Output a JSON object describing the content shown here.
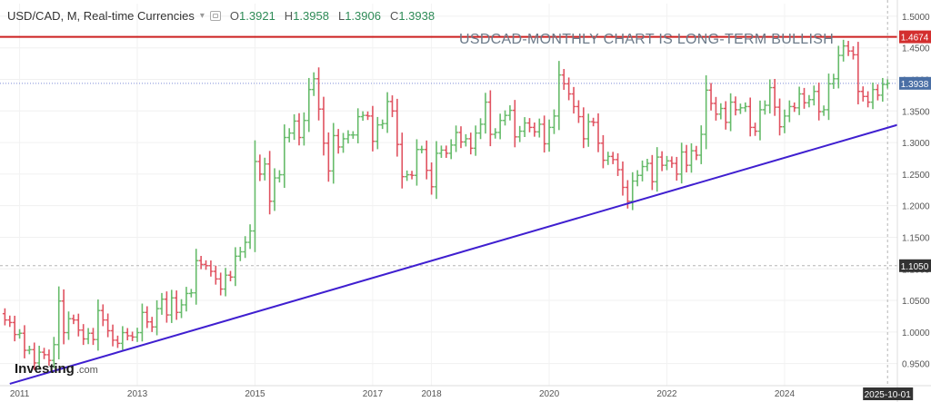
{
  "header": {
    "title": "USD/CAD, M, Real-time Currencies",
    "open_label": "O",
    "open": "1.3921",
    "high_label": "H",
    "high": "1.3958",
    "low_label": "L",
    "low": "1.3906",
    "close_label": "C",
    "close": "1.3938"
  },
  "annotation": "USDCAD-MONTHLY CHART IS LONG-TERM BULLISH",
  "brand": {
    "name": "Investing",
    "suffix": ".com"
  },
  "cursor_date": "2025-10-01",
  "price_tags": [
    {
      "label": "1.4674",
      "value": 1.4674,
      "color": "#d32f2f"
    },
    {
      "label": "1.3938",
      "value": 1.3938,
      "color": "#4a6fa5"
    },
    {
      "label": "1.1050",
      "value": 1.105,
      "color": "#333333"
    }
  ],
  "colors": {
    "up": "#66bb6a",
    "down": "#e05260",
    "trend": "#3f1fd0",
    "resistance": "#cc2020"
  },
  "chart_data": {
    "type": "ohlc",
    "title": "USD/CAD, M, Real-time Currencies",
    "x_ticks": [
      "2011",
      "2013",
      "2015",
      "2017",
      "2018",
      "2020",
      "2022",
      "2024"
    ],
    "y_ticks": [
      "1.5000",
      "1.4500",
      "1.4000",
      "1.3500",
      "1.3000",
      "1.2500",
      "1.2000",
      "1.1500",
      "1.1000",
      "1.0500",
      "1.0000",
      "0.9500"
    ],
    "ylim": [
      0.915,
      1.52
    ],
    "xlim": [
      "2010-09",
      "2025-12"
    ],
    "resistance": 1.4674,
    "trendline": [
      {
        "date": "2010-11",
        "value": 0.918
      },
      {
        "date": "2025-12",
        "value": 1.328
      }
    ],
    "closes": [
      [
        "2010-09",
        1.029
      ],
      [
        "2010-10",
        1.019
      ],
      [
        "2010-11",
        1.015
      ],
      [
        "2010-12",
        0.996
      ],
      [
        "2011-01",
        0.998
      ],
      [
        "2011-02",
        0.971
      ],
      [
        "2011-03",
        0.972
      ],
      [
        "2011-04",
        0.951
      ],
      [
        "2011-05",
        0.968
      ],
      [
        "2011-06",
        0.964
      ],
      [
        "2011-07",
        0.955
      ],
      [
        "2011-08",
        0.98
      ],
      [
        "2011-09",
        1.049
      ],
      [
        "2011-10",
        0.999
      ],
      [
        "2011-11",
        1.021
      ],
      [
        "2011-12",
        1.019
      ],
      [
        "2012-01",
        1.003
      ],
      [
        "2012-02",
        0.989
      ],
      [
        "2012-03",
        0.998
      ],
      [
        "2012-04",
        0.988
      ],
      [
        "2012-05",
        1.034
      ],
      [
        "2012-06",
        1.019
      ],
      [
        "2012-07",
        1.002
      ],
      [
        "2012-08",
        0.987
      ],
      [
        "2012-09",
        0.982
      ],
      [
        "2012-10",
        0.999
      ],
      [
        "2012-11",
        0.994
      ],
      [
        "2012-12",
        0.992
      ],
      [
        "2013-01",
        0.999
      ],
      [
        "2013-02",
        1.031
      ],
      [
        "2013-03",
        1.016
      ],
      [
        "2013-04",
        1.008
      ],
      [
        "2013-05",
        1.037
      ],
      [
        "2013-06",
        1.052
      ],
      [
        "2013-07",
        1.027
      ],
      [
        "2013-08",
        1.054
      ],
      [
        "2013-09",
        1.031
      ],
      [
        "2013-10",
        1.043
      ],
      [
        "2013-11",
        1.061
      ],
      [
        "2013-12",
        1.062
      ],
      [
        "2014-01",
        1.113
      ],
      [
        "2014-02",
        1.107
      ],
      [
        "2014-03",
        1.105
      ],
      [
        "2014-04",
        1.096
      ],
      [
        "2014-05",
        1.084
      ],
      [
        "2014-06",
        1.068
      ],
      [
        "2014-07",
        1.09
      ],
      [
        "2014-08",
        1.087
      ],
      [
        "2014-09",
        1.12
      ],
      [
        "2014-10",
        1.127
      ],
      [
        "2014-11",
        1.142
      ],
      [
        "2014-12",
        1.16
      ],
      [
        "2015-01",
        1.27
      ],
      [
        "2015-02",
        1.25
      ],
      [
        "2015-03",
        1.266
      ],
      [
        "2015-04",
        1.207
      ],
      [
        "2015-05",
        1.244
      ],
      [
        "2015-06",
        1.249
      ],
      [
        "2015-07",
        1.308
      ],
      [
        "2015-08",
        1.315
      ],
      [
        "2015-09",
        1.334
      ],
      [
        "2015-10",
        1.308
      ],
      [
        "2015-11",
        1.335
      ],
      [
        "2015-12",
        1.384
      ],
      [
        "2016-01",
        1.401
      ],
      [
        "2016-02",
        1.353
      ],
      [
        "2016-03",
        1.299
      ],
      [
        "2016-04",
        1.255
      ],
      [
        "2016-05",
        1.311
      ],
      [
        "2016-06",
        1.293
      ],
      [
        "2016-07",
        1.306
      ],
      [
        "2016-08",
        1.312
      ],
      [
        "2016-09",
        1.312
      ],
      [
        "2016-10",
        1.341
      ],
      [
        "2016-11",
        1.343
      ],
      [
        "2016-12",
        1.342
      ],
      [
        "2017-01",
        1.302
      ],
      [
        "2017-02",
        1.328
      ],
      [
        "2017-03",
        1.33
      ],
      [
        "2017-04",
        1.365
      ],
      [
        "2017-05",
        1.35
      ],
      [
        "2017-06",
        1.297
      ],
      [
        "2017-07",
        1.246
      ],
      [
        "2017-08",
        1.249
      ],
      [
        "2017-09",
        1.248
      ],
      [
        "2017-10",
        1.289
      ],
      [
        "2017-11",
        1.289
      ],
      [
        "2017-12",
        1.256
      ],
      [
        "2018-01",
        1.23
      ],
      [
        "2018-02",
        1.283
      ],
      [
        "2018-03",
        1.288
      ],
      [
        "2018-04",
        1.283
      ],
      [
        "2018-05",
        1.296
      ],
      [
        "2018-06",
        1.316
      ],
      [
        "2018-07",
        1.301
      ],
      [
        "2018-08",
        1.306
      ],
      [
        "2018-09",
        1.291
      ],
      [
        "2018-10",
        1.315
      ],
      [
        "2018-11",
        1.329
      ],
      [
        "2018-12",
        1.364
      ],
      [
        "2019-01",
        1.313
      ],
      [
        "2019-02",
        1.316
      ],
      [
        "2019-03",
        1.335
      ],
      [
        "2019-04",
        1.343
      ],
      [
        "2019-05",
        1.351
      ],
      [
        "2019-06",
        1.309
      ],
      [
        "2019-07",
        1.318
      ],
      [
        "2019-08",
        1.331
      ],
      [
        "2019-09",
        1.324
      ],
      [
        "2019-10",
        1.317
      ],
      [
        "2019-11",
        1.329
      ],
      [
        "2019-12",
        1.298
      ],
      [
        "2020-01",
        1.324
      ],
      [
        "2020-02",
        1.342
      ],
      [
        "2020-03",
        1.407
      ],
      [
        "2020-04",
        1.393
      ],
      [
        "2020-05",
        1.377
      ],
      [
        "2020-06",
        1.357
      ],
      [
        "2020-07",
        1.341
      ],
      [
        "2020-08",
        1.306
      ],
      [
        "2020-09",
        1.333
      ],
      [
        "2020-10",
        1.332
      ],
      [
        "2020-11",
        1.299
      ],
      [
        "2020-12",
        1.272
      ],
      [
        "2021-01",
        1.278
      ],
      [
        "2021-02",
        1.273
      ],
      [
        "2021-03",
        1.257
      ],
      [
        "2021-04",
        1.229
      ],
      [
        "2021-05",
        1.207
      ],
      [
        "2021-06",
        1.239
      ],
      [
        "2021-07",
        1.248
      ],
      [
        "2021-08",
        1.262
      ],
      [
        "2021-09",
        1.267
      ],
      [
        "2021-10",
        1.238
      ],
      [
        "2021-11",
        1.277
      ],
      [
        "2021-12",
        1.264
      ],
      [
        "2022-01",
        1.271
      ],
      [
        "2022-02",
        1.267
      ],
      [
        "2022-03",
        1.25
      ],
      [
        "2022-04",
        1.285
      ],
      [
        "2022-05",
        1.264
      ],
      [
        "2022-06",
        1.287
      ],
      [
        "2022-07",
        1.28
      ],
      [
        "2022-08",
        1.313
      ],
      [
        "2022-09",
        1.383
      ],
      [
        "2022-10",
        1.362
      ],
      [
        "2022-11",
        1.345
      ],
      [
        "2022-12",
        1.354
      ],
      [
        "2023-01",
        1.332
      ],
      [
        "2023-02",
        1.364
      ],
      [
        "2023-03",
        1.352
      ],
      [
        "2023-04",
        1.355
      ],
      [
        "2023-05",
        1.357
      ],
      [
        "2023-06",
        1.324
      ],
      [
        "2023-07",
        1.318
      ],
      [
        "2023-08",
        1.352
      ],
      [
        "2023-09",
        1.359
      ],
      [
        "2023-10",
        1.387
      ],
      [
        "2023-11",
        1.356
      ],
      [
        "2023-12",
        1.325
      ],
      [
        "2024-01",
        1.342
      ],
      [
        "2024-02",
        1.357
      ],
      [
        "2024-03",
        1.355
      ],
      [
        "2024-04",
        1.377
      ],
      [
        "2024-05",
        1.363
      ],
      [
        "2024-06",
        1.368
      ],
      [
        "2024-07",
        1.381
      ],
      [
        "2024-08",
        1.349
      ],
      [
        "2024-09",
        1.352
      ],
      [
        "2024-10",
        1.393
      ],
      [
        "2024-11",
        1.401
      ],
      [
        "2024-12",
        1.438
      ],
      [
        "2025-01",
        1.453
      ],
      [
        "2025-02",
        1.445
      ],
      [
        "2025-03",
        1.439
      ],
      [
        "2025-04",
        1.381
      ],
      [
        "2025-05",
        1.373
      ],
      [
        "2025-06",
        1.364
      ],
      [
        "2025-07",
        1.384
      ],
      [
        "2025-08",
        1.375
      ],
      [
        "2025-09",
        1.392
      ],
      [
        "2025-10",
        1.3938
      ]
    ]
  }
}
